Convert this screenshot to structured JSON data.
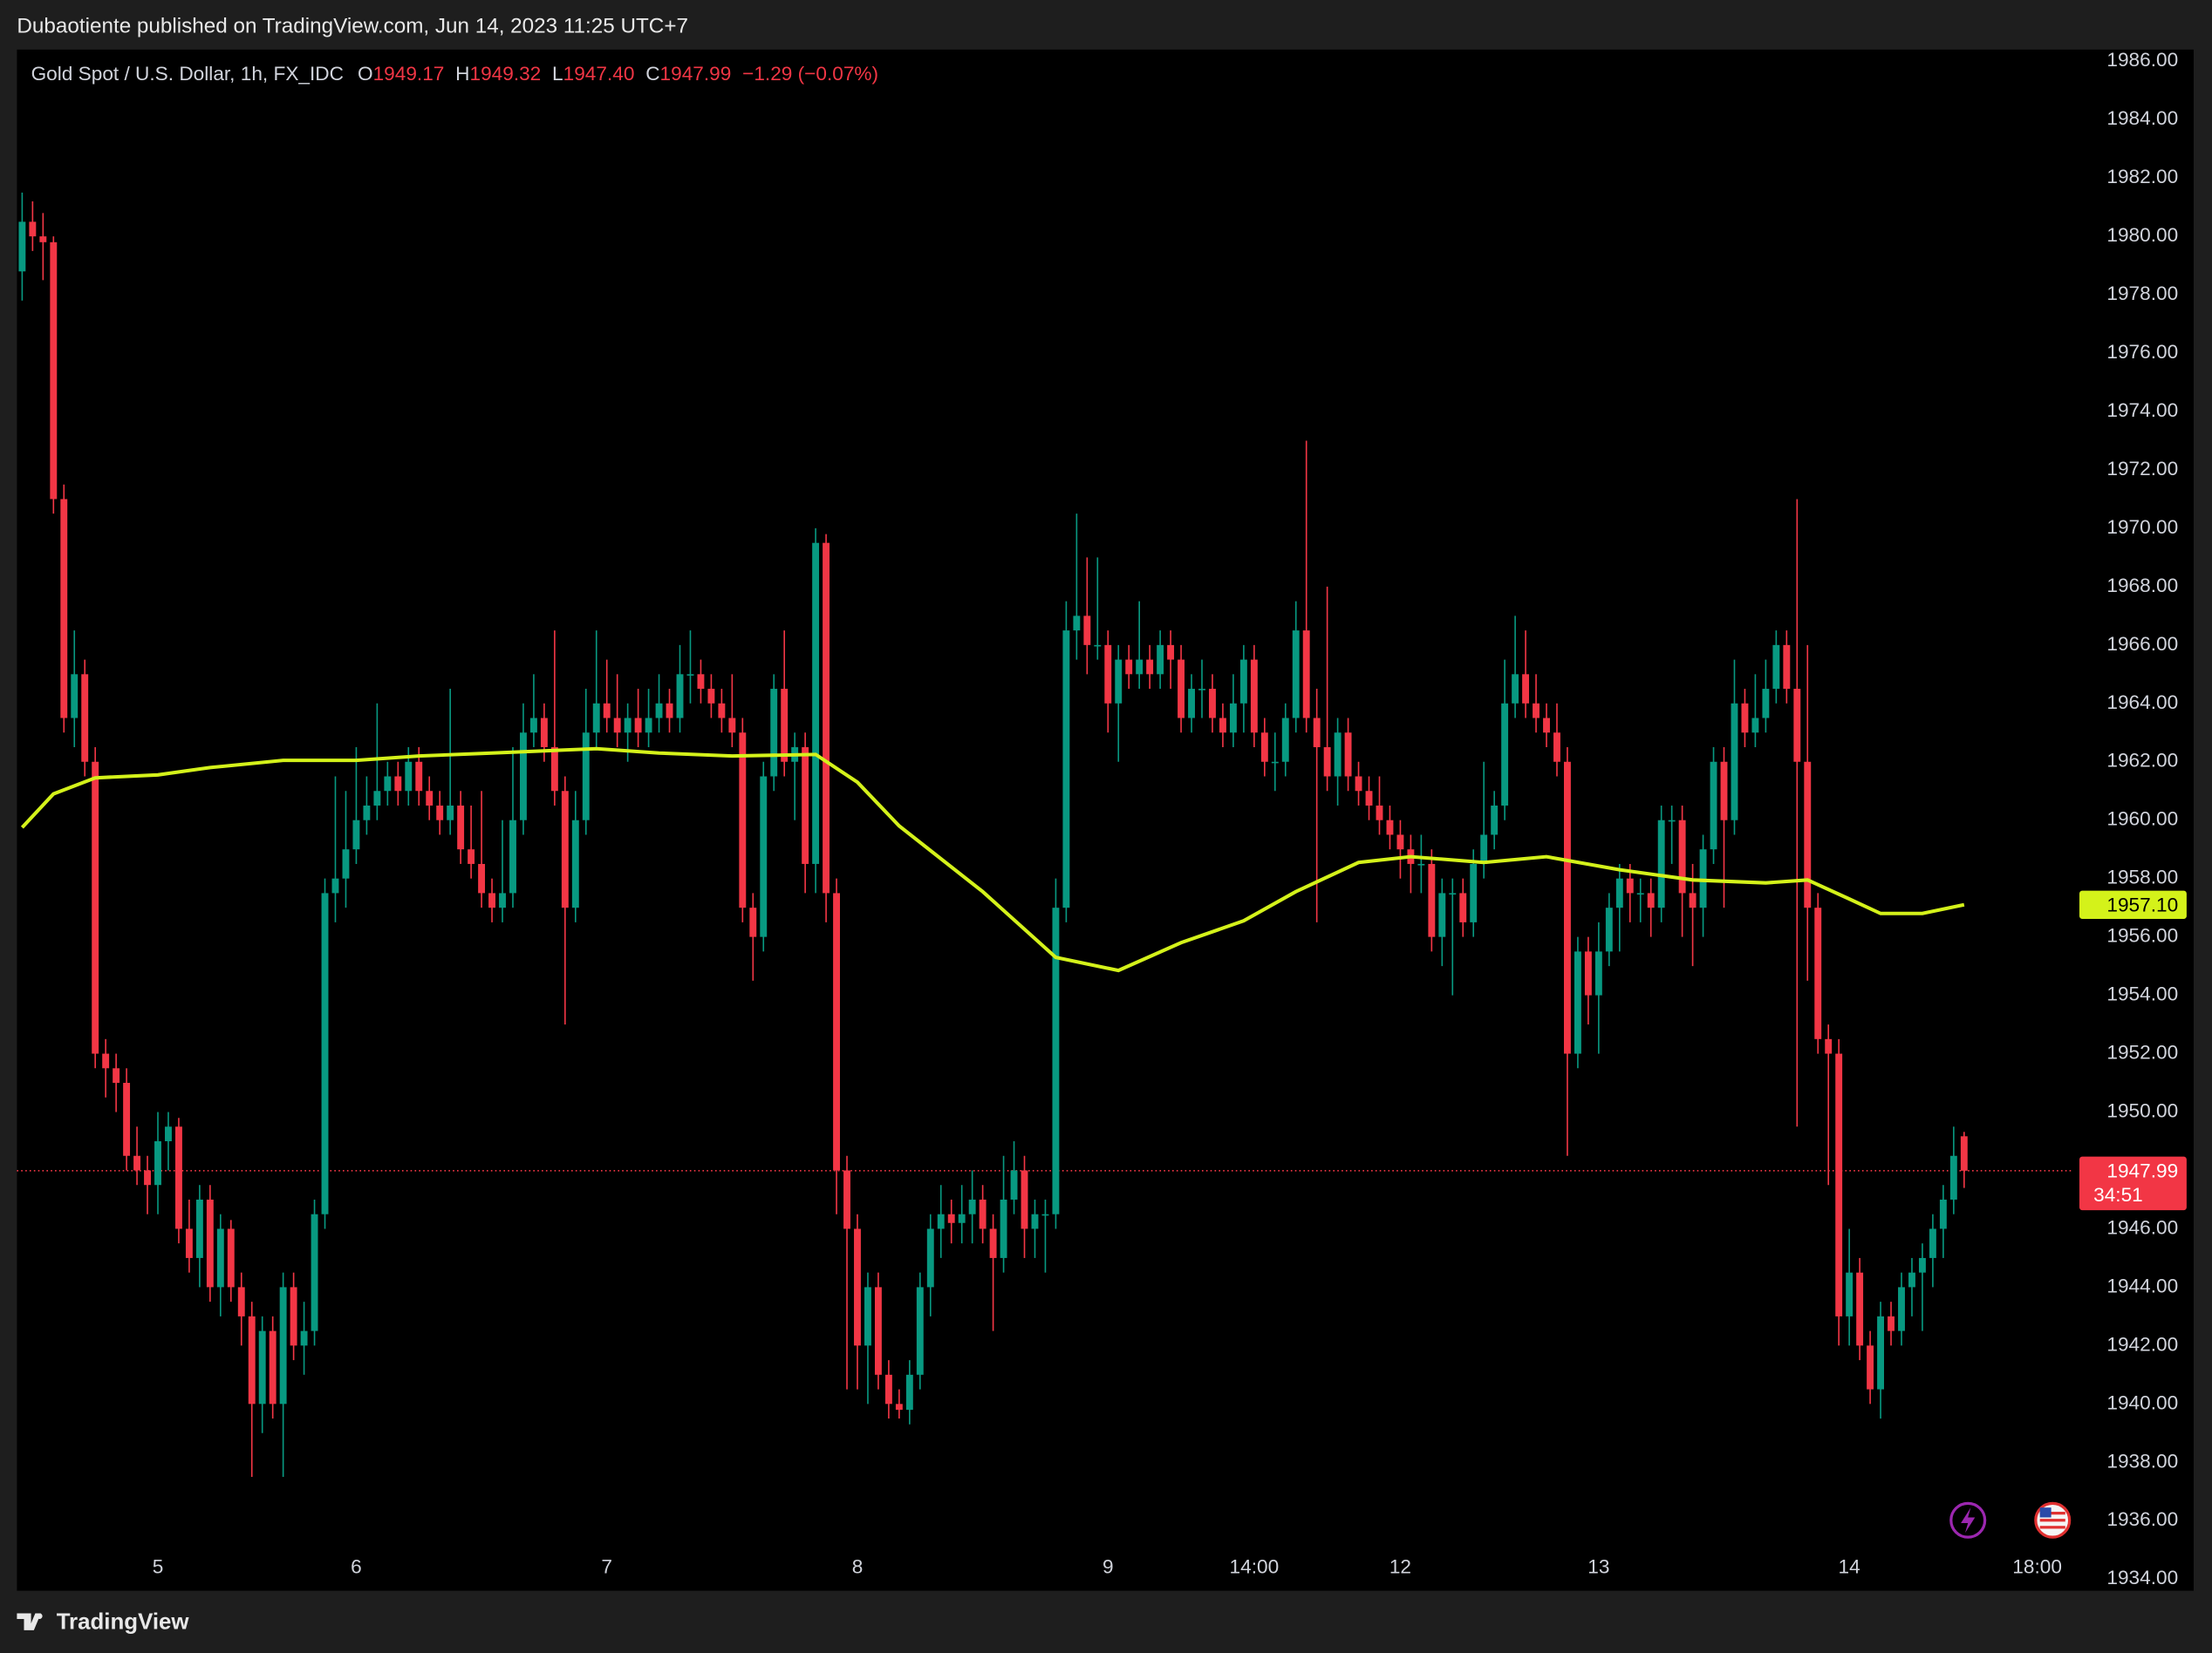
{
  "published": "Dubaotiente published on TradingView.com, Jun 14, 2023 11:25 UTC+7",
  "footer": "TradingView",
  "chart_data": {
    "type": "candlestick",
    "legend": {
      "symbol": "Gold Spot / U.S. Dollar, 1h, FX_IDC",
      "o": "O",
      "open": "1949.17",
      "h": "H",
      "high": "1949.32",
      "l": "L",
      "low": "1947.40",
      "c": "C",
      "close": "1947.99",
      "change": "−1.29 (−0.07%)"
    },
    "up_color": "#089981",
    "down_color": "#f23645",
    "ylim": [
      1933.6,
      1986.4
    ],
    "yticks": [
      {
        "value": 1934,
        "label": "1934.00"
      },
      {
        "value": 1936,
        "label": "1936.00"
      },
      {
        "value": 1938,
        "label": "1938.00"
      },
      {
        "value": 1940,
        "label": "1940.00"
      },
      {
        "value": 1942,
        "label": "1942.00"
      },
      {
        "value": 1944,
        "label": "1944.00"
      },
      {
        "value": 1946,
        "label": "1946.00"
      },
      {
        "value": 1948,
        "label": "1948.00"
      },
      {
        "value": 1950,
        "label": "1950.00"
      },
      {
        "value": 1952,
        "label": "1952.00"
      },
      {
        "value": 1954,
        "label": "1954.00"
      },
      {
        "value": 1956,
        "label": "1956.00"
      },
      {
        "value": 1958,
        "label": "1958.00"
      },
      {
        "value": 1960,
        "label": "1960.00"
      },
      {
        "value": 1962,
        "label": "1962.00"
      },
      {
        "value": 1964,
        "label": "1964.00"
      },
      {
        "value": 1966,
        "label": "1966.00"
      },
      {
        "value": 1968,
        "label": "1968.00"
      },
      {
        "value": 1970,
        "label": "1970.00"
      },
      {
        "value": 1972,
        "label": "1972.00"
      },
      {
        "value": 1974,
        "label": "1974.00"
      },
      {
        "value": 1976,
        "label": "1976.00"
      },
      {
        "value": 1978,
        "label": "1978.00"
      },
      {
        "value": 1980,
        "label": "1980.00"
      },
      {
        "value": 1982,
        "label": "1982.00"
      },
      {
        "value": 1984,
        "label": "1984.00"
      },
      {
        "value": 1986,
        "label": "1986.00"
      }
    ],
    "xlim": [
      -0.5,
      196.5
    ],
    "xticks": [
      {
        "value": 13,
        "label": "5"
      },
      {
        "value": 32,
        "label": "6"
      },
      {
        "value": 56,
        "label": "7"
      },
      {
        "value": 80,
        "label": "8"
      },
      {
        "value": 104,
        "label": "9"
      },
      {
        "value": 118,
        "label": "14:00"
      },
      {
        "value": 132,
        "label": "12"
      },
      {
        "value": 151,
        "label": "13"
      },
      {
        "value": 175,
        "label": "14"
      },
      {
        "value": 193,
        "label": "18:00"
      }
    ],
    "grid": false,
    "candles": [
      [
        1978.8,
        1981.5,
        1977.8,
        1980.5
      ],
      [
        1980.5,
        1981.2,
        1979.5,
        1980.0
      ],
      [
        1980.0,
        1980.8,
        1978.5,
        1979.8
      ],
      [
        1979.8,
        1980.0,
        1970.5,
        1971.0
      ],
      [
        1971.0,
        1971.5,
        1963.0,
        1963.5
      ],
      [
        1963.5,
        1966.5,
        1962.5,
        1965.0
      ],
      [
        1965.0,
        1965.5,
        1961.5,
        1962.0
      ],
      [
        1962.0,
        1962.5,
        1951.5,
        1952.0
      ],
      [
        1952.0,
        1952.5,
        1950.5,
        1951.5
      ],
      [
        1951.5,
        1952.0,
        1950.0,
        1951.0
      ],
      [
        1951.0,
        1951.5,
        1948.0,
        1948.5
      ],
      [
        1948.5,
        1949.5,
        1947.5,
        1948.0
      ],
      [
        1948.0,
        1948.5,
        1946.5,
        1947.5
      ],
      [
        1947.5,
        1950.0,
        1946.5,
        1949.0
      ],
      [
        1949.0,
        1950.0,
        1948.0,
        1949.5
      ],
      [
        1949.5,
        1949.8,
        1945.5,
        1946.0
      ],
      [
        1946.0,
        1947.0,
        1944.5,
        1945.0
      ],
      [
        1945.0,
        1947.5,
        1944.0,
        1947.0
      ],
      [
        1947.0,
        1947.5,
        1943.5,
        1944.0
      ],
      [
        1944.0,
        1946.5,
        1943.0,
        1946.0
      ],
      [
        1946.0,
        1946.3,
        1943.5,
        1944.0
      ],
      [
        1944.0,
        1944.5,
        1942.0,
        1943.0
      ],
      [
        1943.0,
        1943.5,
        1937.5,
        1940.0
      ],
      [
        1940.0,
        1943.0,
        1939.0,
        1942.5
      ],
      [
        1942.5,
        1943.0,
        1939.5,
        1940.0
      ],
      [
        1940.0,
        1944.5,
        1937.5,
        1944.0
      ],
      [
        1944.0,
        1944.5,
        1941.5,
        1942.0
      ],
      [
        1942.0,
        1943.5,
        1941.0,
        1942.5
      ],
      [
        1942.5,
        1947.0,
        1942.0,
        1946.5
      ],
      [
        1946.5,
        1958.0,
        1946.0,
        1957.5
      ],
      [
        1957.5,
        1961.5,
        1956.5,
        1958.0
      ],
      [
        1958.0,
        1961.0,
        1957.0,
        1959.0
      ],
      [
        1959.0,
        1962.5,
        1958.5,
        1960.0
      ],
      [
        1960.0,
        1961.5,
        1959.5,
        1960.5
      ],
      [
        1960.5,
        1964.0,
        1960.0,
        1961.0
      ],
      [
        1961.0,
        1962.0,
        1960.5,
        1961.5
      ],
      [
        1961.5,
        1962.0,
        1960.5,
        1961.0
      ],
      [
        1961.0,
        1962.5,
        1960.5,
        1962.0
      ],
      [
        1962.0,
        1962.5,
        1960.5,
        1961.0
      ],
      [
        1961.0,
        1961.5,
        1960.0,
        1960.5
      ],
      [
        1960.5,
        1961.0,
        1959.5,
        1960.0
      ],
      [
        1960.0,
        1964.5,
        1959.5,
        1960.5
      ],
      [
        1960.5,
        1961.0,
        1958.5,
        1959.0
      ],
      [
        1959.0,
        1960.5,
        1958.0,
        1958.5
      ],
      [
        1958.5,
        1961.0,
        1957.0,
        1957.5
      ],
      [
        1957.5,
        1958.0,
        1956.5,
        1957.0
      ],
      [
        1957.0,
        1960.0,
        1956.5,
        1957.5
      ],
      [
        1957.5,
        1962.5,
        1957.0,
        1960.0
      ],
      [
        1960.0,
        1964.0,
        1959.5,
        1963.0
      ],
      [
        1963.0,
        1965.0,
        1962.5,
        1963.5
      ],
      [
        1963.5,
        1964.0,
        1962.0,
        1962.5
      ],
      [
        1962.5,
        1966.5,
        1960.5,
        1961.0
      ],
      [
        1961.0,
        1961.5,
        1953.0,
        1957.0
      ],
      [
        1957.0,
        1961.0,
        1956.5,
        1960.0
      ],
      [
        1960.0,
        1964.5,
        1959.5,
        1963.0
      ],
      [
        1963.0,
        1966.5,
        1962.5,
        1964.0
      ],
      [
        1964.0,
        1965.5,
        1963.0,
        1963.5
      ],
      [
        1963.5,
        1965.0,
        1962.5,
        1963.0
      ],
      [
        1963.0,
        1964.0,
        1962.0,
        1963.5
      ],
      [
        1963.5,
        1964.5,
        1962.5,
        1963.0
      ],
      [
        1963.0,
        1964.5,
        1962.5,
        1963.5
      ],
      [
        1963.5,
        1965.0,
        1963.0,
        1964.0
      ],
      [
        1964.0,
        1964.5,
        1963.0,
        1963.5
      ],
      [
        1963.5,
        1966.0,
        1963.0,
        1965.0
      ],
      [
        1965.0,
        1966.5,
        1964.0,
        1965.0
      ],
      [
        1965.0,
        1965.5,
        1964.0,
        1964.5
      ],
      [
        1964.5,
        1965.0,
        1963.5,
        1964.0
      ],
      [
        1964.0,
        1964.5,
        1963.0,
        1963.5
      ],
      [
        1963.5,
        1965.0,
        1962.5,
        1963.0
      ],
      [
        1963.0,
        1963.5,
        1956.5,
        1957.0
      ],
      [
        1957.0,
        1957.5,
        1954.5,
        1956.0
      ],
      [
        1956.0,
        1962.0,
        1955.5,
        1961.5
      ],
      [
        1961.5,
        1965.0,
        1961.0,
        1964.5
      ],
      [
        1964.5,
        1966.5,
        1961.5,
        1962.0
      ],
      [
        1962.0,
        1963.0,
        1960.0,
        1962.5
      ],
      [
        1962.5,
        1963.0,
        1957.5,
        1958.5
      ],
      [
        1958.5,
        1970.0,
        1957.5,
        1969.5
      ],
      [
        1969.5,
        1969.8,
        1956.5,
        1957.5
      ],
      [
        1957.5,
        1958.0,
        1946.5,
        1948.0
      ],
      [
        1948.0,
        1948.5,
        1940.5,
        1946.0
      ],
      [
        1946.0,
        1946.5,
        1940.5,
        1942.0
      ],
      [
        1942.0,
        1944.5,
        1940.0,
        1944.0
      ],
      [
        1944.0,
        1944.5,
        1940.5,
        1941.0
      ],
      [
        1941.0,
        1941.5,
        1939.5,
        1940.0
      ],
      [
        1940.0,
        1940.5,
        1939.5,
        1939.8
      ],
      [
        1939.8,
        1941.5,
        1939.3,
        1941.0
      ],
      [
        1941.0,
        1944.5,
        1940.5,
        1944.0
      ],
      [
        1944.0,
        1946.5,
        1943.0,
        1946.0
      ],
      [
        1946.0,
        1947.5,
        1945.0,
        1946.5
      ],
      [
        1946.5,
        1947.0,
        1945.5,
        1946.2
      ],
      [
        1946.2,
        1947.5,
        1945.5,
        1946.5
      ],
      [
        1946.5,
        1948.0,
        1945.5,
        1947.0
      ],
      [
        1947.0,
        1947.5,
        1945.5,
        1946.0
      ],
      [
        1946.0,
        1946.5,
        1942.5,
        1945.0
      ],
      [
        1945.0,
        1948.5,
        1944.5,
        1947.0
      ],
      [
        1947.0,
        1949.0,
        1946.5,
        1948.0
      ],
      [
        1948.0,
        1948.5,
        1945.0,
        1946.0
      ],
      [
        1946.0,
        1947.0,
        1945.0,
        1946.5
      ],
      [
        1946.5,
        1947.0,
        1944.5,
        1946.5
      ],
      [
        1946.5,
        1958.0,
        1946.0,
        1957.0
      ],
      [
        1957.0,
        1967.5,
        1956.5,
        1966.5
      ],
      [
        1966.5,
        1970.5,
        1965.5,
        1967.0
      ],
      [
        1967.0,
        1969.0,
        1965.0,
        1966.0
      ],
      [
        1966.0,
        1969.0,
        1965.5,
        1966.0
      ],
      [
        1966.0,
        1966.5,
        1963.0,
        1964.0
      ],
      [
        1964.0,
        1966.0,
        1962.0,
        1965.5
      ],
      [
        1965.5,
        1966.0,
        1964.5,
        1965.0
      ],
      [
        1965.0,
        1967.5,
        1964.5,
        1965.5
      ],
      [
        1965.5,
        1966.0,
        1964.5,
        1965.0
      ],
      [
        1965.0,
        1966.5,
        1964.5,
        1966.0
      ],
      [
        1966.0,
        1966.5,
        1964.5,
        1965.5
      ],
      [
        1965.5,
        1966.0,
        1963.0,
        1963.5
      ],
      [
        1963.5,
        1965.0,
        1963.0,
        1964.5
      ],
      [
        1964.5,
        1965.5,
        1963.5,
        1964.5
      ],
      [
        1964.5,
        1965.0,
        1963.0,
        1963.5
      ],
      [
        1963.5,
        1964.0,
        1962.5,
        1963.0
      ],
      [
        1963.0,
        1965.0,
        1962.5,
        1964.0
      ],
      [
        1964.0,
        1966.0,
        1963.0,
        1965.5
      ],
      [
        1965.5,
        1966.0,
        1962.5,
        1963.0
      ],
      [
        1963.0,
        1963.5,
        1961.5,
        1962.0
      ],
      [
        1962.0,
        1963.0,
        1961.0,
        1962.0
      ],
      [
        1962.0,
        1964.0,
        1961.5,
        1963.5
      ],
      [
        1963.5,
        1967.5,
        1963.0,
        1966.5
      ],
      [
        1966.5,
        1973.0,
        1963.0,
        1963.5
      ],
      [
        1963.5,
        1964.5,
        1956.5,
        1962.5
      ],
      [
        1962.5,
        1968.0,
        1961.0,
        1961.5
      ],
      [
        1961.5,
        1963.5,
        1960.5,
        1963.0
      ],
      [
        1963.0,
        1963.5,
        1961.0,
        1961.5
      ],
      [
        1961.5,
        1962.0,
        1960.5,
        1961.0
      ],
      [
        1961.0,
        1961.5,
        1960.0,
        1960.5
      ],
      [
        1960.5,
        1961.5,
        1959.5,
        1960.0
      ],
      [
        1960.0,
        1960.5,
        1959.0,
        1959.5
      ],
      [
        1959.5,
        1960.0,
        1958.0,
        1959.0
      ],
      [
        1959.0,
        1959.5,
        1957.5,
        1958.5
      ],
      [
        1958.5,
        1959.5,
        1957.5,
        1958.5
      ],
      [
        1958.5,
        1959.0,
        1955.5,
        1956.0
      ],
      [
        1956.0,
        1958.0,
        1955.0,
        1957.5
      ],
      [
        1957.5,
        1958.0,
        1954.0,
        1957.5
      ],
      [
        1957.5,
        1958.0,
        1956.0,
        1956.5
      ],
      [
        1956.5,
        1959.0,
        1956.0,
        1958.5
      ],
      [
        1958.5,
        1962.0,
        1958.0,
        1959.5
      ],
      [
        1959.5,
        1961.0,
        1959.0,
        1960.5
      ],
      [
        1960.5,
        1965.5,
        1960.0,
        1964.0
      ],
      [
        1964.0,
        1967.0,
        1963.5,
        1965.0
      ],
      [
        1965.0,
        1966.5,
        1963.5,
        1964.0
      ],
      [
        1964.0,
        1965.0,
        1963.0,
        1963.5
      ],
      [
        1963.5,
        1964.0,
        1962.5,
        1963.0
      ],
      [
        1963.0,
        1964.0,
        1961.5,
        1962.0
      ],
      [
        1962.0,
        1962.5,
        1948.5,
        1952.0
      ],
      [
        1952.0,
        1956.0,
        1951.5,
        1955.5
      ],
      [
        1955.5,
        1956.0,
        1953.0,
        1954.0
      ],
      [
        1954.0,
        1956.5,
        1952.0,
        1955.5
      ],
      [
        1955.5,
        1957.5,
        1955.0,
        1957.0
      ],
      [
        1957.0,
        1958.5,
        1955.5,
        1958.0
      ],
      [
        1958.0,
        1958.5,
        1956.5,
        1957.5
      ],
      [
        1957.5,
        1958.0,
        1956.5,
        1957.5
      ],
      [
        1957.5,
        1958.0,
        1956.0,
        1957.0
      ],
      [
        1957.0,
        1960.5,
        1956.5,
        1960.0
      ],
      [
        1960.0,
        1960.5,
        1958.5,
        1960.0
      ],
      [
        1960.0,
        1960.5,
        1956.0,
        1957.5
      ],
      [
        1957.5,
        1958.5,
        1955.0,
        1957.0
      ],
      [
        1957.0,
        1959.5,
        1956.0,
        1959.0
      ],
      [
        1959.0,
        1962.5,
        1958.5,
        1962.0
      ],
      [
        1962.0,
        1962.5,
        1957.0,
        1960.0
      ],
      [
        1960.0,
        1965.5,
        1959.5,
        1964.0
      ],
      [
        1964.0,
        1964.5,
        1962.5,
        1963.0
      ],
      [
        1963.0,
        1965.0,
        1962.5,
        1963.5
      ],
      [
        1963.5,
        1965.5,
        1963.0,
        1964.5
      ],
      [
        1964.5,
        1966.5,
        1964.0,
        1966.0
      ],
      [
        1966.0,
        1966.5,
        1964.0,
        1964.5
      ],
      [
        1964.5,
        1971.0,
        1949.5,
        1962.0
      ],
      [
        1962.0,
        1966.0,
        1954.5,
        1957.0
      ],
      [
        1957.0,
        1957.5,
        1952.0,
        1952.5
      ],
      [
        1952.5,
        1953.0,
        1947.5,
        1952.0
      ],
      [
        1952.0,
        1952.5,
        1942.0,
        1943.0
      ],
      [
        1943.0,
        1946.0,
        1942.0,
        1944.5
      ],
      [
        1944.5,
        1945.0,
        1941.5,
        1942.0
      ],
      [
        1942.0,
        1942.5,
        1940.0,
        1940.5
      ],
      [
        1940.5,
        1943.5,
        1939.5,
        1943.0
      ],
      [
        1943.0,
        1943.5,
        1942.0,
        1942.5
      ],
      [
        1942.5,
        1944.5,
        1942.0,
        1944.0
      ],
      [
        1944.0,
        1945.0,
        1943.0,
        1944.5
      ],
      [
        1944.5,
        1945.5,
        1942.5,
        1945.0
      ],
      [
        1945.0,
        1946.5,
        1944.0,
        1946.0
      ],
      [
        1946.0,
        1947.5,
        1945.0,
        1947.0
      ],
      [
        1947.0,
        1949.5,
        1946.5,
        1948.5
      ],
      [
        1949.17,
        1949.32,
        1947.4,
        1947.99
      ]
    ],
    "last_price": {
      "value": 1947.99,
      "label": "1947.99",
      "countdown": "34:51",
      "color": "#f23645"
    },
    "ma": {
      "color": "#d4f21a",
      "x": [
        0,
        3,
        7,
        13,
        18,
        25,
        32,
        38,
        45,
        55,
        61,
        68,
        76,
        80,
        84,
        92,
        99,
        105,
        111,
        117,
        122,
        128,
        133,
        140,
        146,
        153,
        160,
        167,
        171,
        175,
        178,
        182,
        186
      ],
      "values": [
        1959.75,
        1960.9,
        1961.45,
        1961.55,
        1961.8,
        1962.05,
        1962.05,
        1962.2,
        1962.3,
        1962.45,
        1962.3,
        1962.2,
        1962.25,
        1961.3,
        1959.8,
        1957.55,
        1955.3,
        1954.85,
        1955.8,
        1956.55,
        1957.55,
        1958.55,
        1958.75,
        1958.55,
        1958.75,
        1958.3,
        1957.95,
        1957.85,
        1957.95,
        1957.3,
        1956.8,
        1956.8,
        1957.1
      ],
      "last_label": "1957.10"
    }
  }
}
